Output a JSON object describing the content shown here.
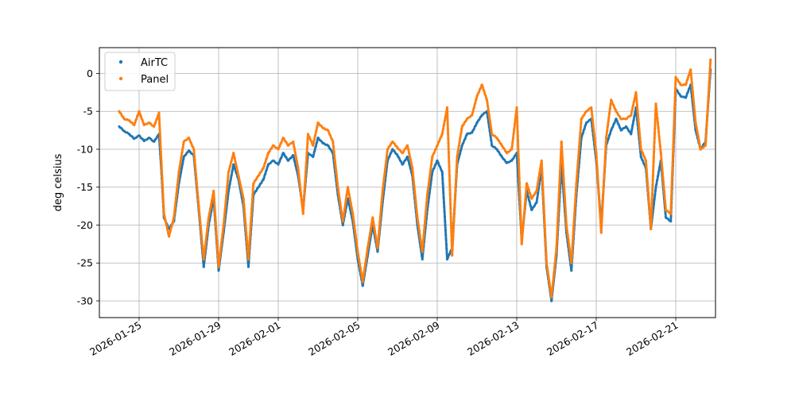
{
  "chart_data": {
    "type": "scatter",
    "title": "",
    "xlabel": "",
    "ylabel": "deg celsius",
    "x_type": "date",
    "xlim": [
      "2026-01-23",
      "2026-02-23"
    ],
    "ylim": [
      -32.2,
      3.4
    ],
    "x_ticks": [
      "2026-01-25",
      "2026-01-29",
      "2026-02-01",
      "2026-02-05",
      "2026-02-09",
      "2026-02-13",
      "2026-02-17",
      "2026-02-21"
    ],
    "y_ticks": [
      0,
      -5,
      -10,
      -15,
      -20,
      -25,
      -30
    ],
    "grid": true,
    "legend": {
      "position": "top-left",
      "entries": [
        "AirTC",
        "Panel"
      ]
    },
    "colors": {
      "AirTC": "#1f77b4",
      "Panel": "#ff7f0e"
    },
    "series": [
      {
        "name": "AirTC",
        "points": [
          [
            "2026-01-24T00:00",
            -7.0
          ],
          [
            "2026-01-24T06:00",
            -7.6
          ],
          [
            "2026-01-24T12:00",
            -8.0
          ],
          [
            "2026-01-24T18:00",
            -8.6
          ],
          [
            "2026-01-25T00:00",
            -8.2
          ],
          [
            "2026-01-25T06:00",
            -8.9
          ],
          [
            "2026-01-25T12:00",
            -8.5
          ],
          [
            "2026-01-25T18:00",
            -9.0
          ],
          [
            "2026-01-26T00:00",
            -8.0
          ],
          [
            "2026-01-26T03:00",
            -13.0
          ],
          [
            "2026-01-26T06:00",
            -19.0
          ],
          [
            "2026-01-26T12:00",
            -20.5
          ],
          [
            "2026-01-26T18:00",
            -19.5
          ],
          [
            "2026-01-27T00:00",
            -14.5
          ],
          [
            "2026-01-27T06:00",
            -11.0
          ],
          [
            "2026-01-27T12:00",
            -10.2
          ],
          [
            "2026-01-27T18:00",
            -10.8
          ],
          [
            "2026-01-28T00:00",
            -18.0
          ],
          [
            "2026-01-28T06:00",
            -25.5
          ],
          [
            "2026-01-28T12:00",
            -20.0
          ],
          [
            "2026-01-28T18:00",
            -16.5
          ],
          [
            "2026-01-29T00:00",
            -26.0
          ],
          [
            "2026-01-29T06:00",
            -21.0
          ],
          [
            "2026-01-29T12:00",
            -15.5
          ],
          [
            "2026-01-29T18:00",
            -12.0
          ],
          [
            "2026-01-30T00:00",
            -14.0
          ],
          [
            "2026-01-30T06:00",
            -17.5
          ],
          [
            "2026-01-30T12:00",
            -25.5
          ],
          [
            "2026-01-30T18:00",
            -16.0
          ],
          [
            "2026-01-31T00:00",
            -15.0
          ],
          [
            "2026-01-31T06:00",
            -14.0
          ],
          [
            "2026-01-31T12:00",
            -12.0
          ],
          [
            "2026-01-31T18:00",
            -11.5
          ],
          [
            "2026-02-01T00:00",
            -12.0
          ],
          [
            "2026-02-01T06:00",
            -10.5
          ],
          [
            "2026-02-01T12:00",
            -11.5
          ],
          [
            "2026-02-01T18:00",
            -10.8
          ],
          [
            "2026-02-02T00:00",
            -13.5
          ],
          [
            "2026-02-02T06:00",
            -18.0
          ],
          [
            "2026-02-02T12:00",
            -10.5
          ],
          [
            "2026-02-02T18:00",
            -11.0
          ],
          [
            "2026-02-03T00:00",
            -8.5
          ],
          [
            "2026-02-03T06:00",
            -9.2
          ],
          [
            "2026-02-03T12:00",
            -9.5
          ],
          [
            "2026-02-03T18:00",
            -10.5
          ],
          [
            "2026-02-04T00:00",
            -16.0
          ],
          [
            "2026-02-04T06:00",
            -20.0
          ],
          [
            "2026-02-04T12:00",
            -16.5
          ],
          [
            "2026-02-04T18:00",
            -19.5
          ],
          [
            "2026-02-05T00:00",
            -24.5
          ],
          [
            "2026-02-05T06:00",
            -28.0
          ],
          [
            "2026-02-05T12:00",
            -24.0
          ],
          [
            "2026-02-05T18:00",
            -20.0
          ],
          [
            "2026-02-06T00:00",
            -23.5
          ],
          [
            "2026-02-06T06:00",
            -17.0
          ],
          [
            "2026-02-06T12:00",
            -11.5
          ],
          [
            "2026-02-06T18:00",
            -10.0
          ],
          [
            "2026-02-07T00:00",
            -10.8
          ],
          [
            "2026-02-07T06:00",
            -12.0
          ],
          [
            "2026-02-07T12:00",
            -11.0
          ],
          [
            "2026-02-07T18:00",
            -13.5
          ],
          [
            "2026-02-08T00:00",
            -20.0
          ],
          [
            "2026-02-08T06:00",
            -24.5
          ],
          [
            "2026-02-08T12:00",
            -18.0
          ],
          [
            "2026-02-08T18:00",
            -13.0
          ],
          [
            "2026-02-09T00:00",
            -11.5
          ],
          [
            "2026-02-09T06:00",
            -13.0
          ],
          [
            "2026-02-09T12:00",
            -24.5
          ],
          [
            "2026-02-09T18:00",
            -23.0
          ],
          [
            "2026-02-10T00:00",
            -12.0
          ],
          [
            "2026-02-10T06:00",
            -9.5
          ],
          [
            "2026-02-10T12:00",
            -8.0
          ],
          [
            "2026-02-10T18:00",
            -7.8
          ],
          [
            "2026-02-11T00:00",
            -6.5
          ],
          [
            "2026-02-11T06:00",
            -5.5
          ],
          [
            "2026-02-11T12:00",
            -5.0
          ],
          [
            "2026-02-11T18:00",
            -9.5
          ],
          [
            "2026-02-12T00:00",
            -10.0
          ],
          [
            "2026-02-12T06:00",
            -11.0
          ],
          [
            "2026-02-12T12:00",
            -11.8
          ],
          [
            "2026-02-12T18:00",
            -11.5
          ],
          [
            "2026-02-13T00:00",
            -10.5
          ],
          [
            "2026-02-13T06:00",
            -22.0
          ],
          [
            "2026-02-13T12:00",
            -15.5
          ],
          [
            "2026-02-13T18:00",
            -18.0
          ],
          [
            "2026-02-14T00:00",
            -17.0
          ],
          [
            "2026-02-14T06:00",
            -12.5
          ],
          [
            "2026-02-14T12:00",
            -25.5
          ],
          [
            "2026-02-14T18:00",
            -30.0
          ],
          [
            "2026-02-15T00:00",
            -24.0
          ],
          [
            "2026-02-15T06:00",
            -12.0
          ],
          [
            "2026-02-15T12:00",
            -21.0
          ],
          [
            "2026-02-15T18:00",
            -26.0
          ],
          [
            "2026-02-16T00:00",
            -16.0
          ],
          [
            "2026-02-16T06:00",
            -8.5
          ],
          [
            "2026-02-16T12:00",
            -6.5
          ],
          [
            "2026-02-16T18:00",
            -6.0
          ],
          [
            "2026-02-17T00:00",
            -11.5
          ],
          [
            "2026-02-17T06:00",
            -20.0
          ],
          [
            "2026-02-17T12:00",
            -9.5
          ],
          [
            "2026-02-17T18:00",
            -7.5
          ],
          [
            "2026-02-18T00:00",
            -6.0
          ],
          [
            "2026-02-18T06:00",
            -7.5
          ],
          [
            "2026-02-18T12:00",
            -7.0
          ],
          [
            "2026-02-18T18:00",
            -8.0
          ],
          [
            "2026-02-19T00:00",
            -4.5
          ],
          [
            "2026-02-19T06:00",
            -11.0
          ],
          [
            "2026-02-19T12:00",
            -12.5
          ],
          [
            "2026-02-19T18:00",
            -20.5
          ],
          [
            "2026-02-20T00:00",
            -15.0
          ],
          [
            "2026-02-20T06:00",
            -11.5
          ],
          [
            "2026-02-20T12:00",
            -19.0
          ],
          [
            "2026-02-20T18:00",
            -19.5
          ],
          [
            "2026-02-21T00:00",
            -2.0
          ],
          [
            "2026-02-21T06:00",
            -3.0
          ],
          [
            "2026-02-21T12:00",
            -3.2
          ],
          [
            "2026-02-21T18:00",
            -1.5
          ],
          [
            "2026-02-22T00:00",
            -7.5
          ],
          [
            "2026-02-22T06:00",
            -10.0
          ],
          [
            "2026-02-22T12:00",
            -9.0
          ],
          [
            "2026-02-22T18:00",
            0.5
          ]
        ]
      },
      {
        "name": "Panel",
        "points": [
          [
            "2026-01-24T00:00",
            -5.0
          ],
          [
            "2026-01-24T06:00",
            -6.0
          ],
          [
            "2026-01-24T12:00",
            -6.2
          ],
          [
            "2026-01-24T18:00",
            -6.8
          ],
          [
            "2026-01-25T00:00",
            -5.0
          ],
          [
            "2026-01-25T06:00",
            -6.8
          ],
          [
            "2026-01-25T12:00",
            -6.5
          ],
          [
            "2026-01-25T18:00",
            -7.0
          ],
          [
            "2026-01-26T00:00",
            -5.2
          ],
          [
            "2026-01-26T03:00",
            -12.0
          ],
          [
            "2026-01-26T06:00",
            -18.5
          ],
          [
            "2026-01-26T12:00",
            -21.5
          ],
          [
            "2026-01-26T18:00",
            -19.0
          ],
          [
            "2026-01-27T00:00",
            -13.0
          ],
          [
            "2026-01-27T06:00",
            -9.0
          ],
          [
            "2026-01-27T12:00",
            -8.5
          ],
          [
            "2026-01-27T18:00",
            -10.0
          ],
          [
            "2026-01-28T00:00",
            -17.5
          ],
          [
            "2026-01-28T06:00",
            -24.5
          ],
          [
            "2026-01-28T12:00",
            -19.0
          ],
          [
            "2026-01-28T18:00",
            -15.5
          ],
          [
            "2026-01-29T00:00",
            -25.5
          ],
          [
            "2026-01-29T06:00",
            -20.0
          ],
          [
            "2026-01-29T12:00",
            -13.0
          ],
          [
            "2026-01-29T18:00",
            -10.5
          ],
          [
            "2026-01-30T00:00",
            -13.5
          ],
          [
            "2026-01-30T06:00",
            -16.5
          ],
          [
            "2026-01-30T12:00",
            -24.5
          ],
          [
            "2026-01-30T18:00",
            -14.5
          ],
          [
            "2026-01-31T00:00",
            -13.5
          ],
          [
            "2026-01-31T06:00",
            -12.5
          ],
          [
            "2026-01-31T12:00",
            -10.5
          ],
          [
            "2026-01-31T18:00",
            -9.5
          ],
          [
            "2026-02-01T00:00",
            -10.0
          ],
          [
            "2026-02-01T06:00",
            -8.5
          ],
          [
            "2026-02-01T12:00",
            -9.5
          ],
          [
            "2026-02-01T18:00",
            -9.0
          ],
          [
            "2026-02-02T00:00",
            -12.5
          ],
          [
            "2026-02-02T06:00",
            -18.5
          ],
          [
            "2026-02-02T12:00",
            -8.0
          ],
          [
            "2026-02-02T18:00",
            -9.5
          ],
          [
            "2026-02-03T00:00",
            -6.5
          ],
          [
            "2026-02-03T06:00",
            -7.2
          ],
          [
            "2026-02-03T12:00",
            -7.5
          ],
          [
            "2026-02-03T18:00",
            -9.0
          ],
          [
            "2026-02-04T00:00",
            -15.0
          ],
          [
            "2026-02-04T06:00",
            -19.5
          ],
          [
            "2026-02-04T12:00",
            -15.0
          ],
          [
            "2026-02-04T18:00",
            -18.5
          ],
          [
            "2026-02-05T00:00",
            -23.5
          ],
          [
            "2026-02-05T06:00",
            -27.5
          ],
          [
            "2026-02-05T12:00",
            -23.0
          ],
          [
            "2026-02-05T18:00",
            -19.0
          ],
          [
            "2026-02-06T00:00",
            -23.0
          ],
          [
            "2026-02-06T06:00",
            -15.5
          ],
          [
            "2026-02-06T12:00",
            -10.0
          ],
          [
            "2026-02-06T18:00",
            -9.0
          ],
          [
            "2026-02-07T00:00",
            -9.8
          ],
          [
            "2026-02-07T06:00",
            -10.5
          ],
          [
            "2026-02-07T12:00",
            -9.5
          ],
          [
            "2026-02-07T18:00",
            -12.5
          ],
          [
            "2026-02-08T00:00",
            -19.0
          ],
          [
            "2026-02-08T06:00",
            -23.5
          ],
          [
            "2026-02-08T12:00",
            -16.0
          ],
          [
            "2026-02-08T18:00",
            -11.0
          ],
          [
            "2026-02-09T00:00",
            -9.5
          ],
          [
            "2026-02-09T06:00",
            -8.0
          ],
          [
            "2026-02-09T12:00",
            -4.5
          ],
          [
            "2026-02-09T18:00",
            -24.0
          ],
          [
            "2026-02-10T00:00",
            -11.0
          ],
          [
            "2026-02-10T06:00",
            -7.0
          ],
          [
            "2026-02-10T12:00",
            -6.0
          ],
          [
            "2026-02-10T18:00",
            -5.5
          ],
          [
            "2026-02-11T00:00",
            -3.0
          ],
          [
            "2026-02-11T06:00",
            -1.5
          ],
          [
            "2026-02-11T12:00",
            -3.5
          ],
          [
            "2026-02-11T18:00",
            -8.0
          ],
          [
            "2026-02-12T00:00",
            -8.5
          ],
          [
            "2026-02-12T06:00",
            -9.5
          ],
          [
            "2026-02-12T12:00",
            -10.5
          ],
          [
            "2026-02-12T18:00",
            -10.0
          ],
          [
            "2026-02-13T00:00",
            -4.5
          ],
          [
            "2026-02-13T06:00",
            -22.5
          ],
          [
            "2026-02-13T12:00",
            -14.5
          ],
          [
            "2026-02-13T18:00",
            -16.5
          ],
          [
            "2026-02-14T00:00",
            -15.5
          ],
          [
            "2026-02-14T06:00",
            -11.5
          ],
          [
            "2026-02-14T12:00",
            -25.0
          ],
          [
            "2026-02-14T18:00",
            -29.5
          ],
          [
            "2026-02-15T00:00",
            -23.0
          ],
          [
            "2026-02-15T06:00",
            -9.0
          ],
          [
            "2026-02-15T12:00",
            -20.0
          ],
          [
            "2026-02-15T18:00",
            -25.0
          ],
          [
            "2026-02-16T00:00",
            -14.5
          ],
          [
            "2026-02-16T06:00",
            -6.0
          ],
          [
            "2026-02-16T12:00",
            -5.0
          ],
          [
            "2026-02-16T18:00",
            -4.5
          ],
          [
            "2026-02-17T00:00",
            -10.5
          ],
          [
            "2026-02-17T06:00",
            -21.0
          ],
          [
            "2026-02-17T12:00",
            -8.5
          ],
          [
            "2026-02-17T18:00",
            -3.5
          ],
          [
            "2026-02-18T00:00",
            -5.0
          ],
          [
            "2026-02-18T06:00",
            -6.0
          ],
          [
            "2026-02-18T12:00",
            -6.0
          ],
          [
            "2026-02-18T18:00",
            -5.5
          ],
          [
            "2026-02-19T00:00",
            -2.5
          ],
          [
            "2026-02-19T06:00",
            -10.0
          ],
          [
            "2026-02-19T12:00",
            -11.5
          ],
          [
            "2026-02-19T18:00",
            -20.5
          ],
          [
            "2026-02-20T00:00",
            -4.0
          ],
          [
            "2026-02-20T06:00",
            -10.5
          ],
          [
            "2026-02-20T12:00",
            -18.0
          ],
          [
            "2026-02-20T18:00",
            -18.5
          ],
          [
            "2026-02-21T00:00",
            -0.5
          ],
          [
            "2026-02-21T06:00",
            -1.5
          ],
          [
            "2026-02-21T12:00",
            -1.5
          ],
          [
            "2026-02-21T18:00",
            0.5
          ],
          [
            "2026-02-22T00:00",
            -6.5
          ],
          [
            "2026-02-22T06:00",
            -10.0
          ],
          [
            "2026-02-22T12:00",
            -9.5
          ],
          [
            "2026-02-22T18:00",
            1.8
          ]
        ]
      }
    ]
  }
}
